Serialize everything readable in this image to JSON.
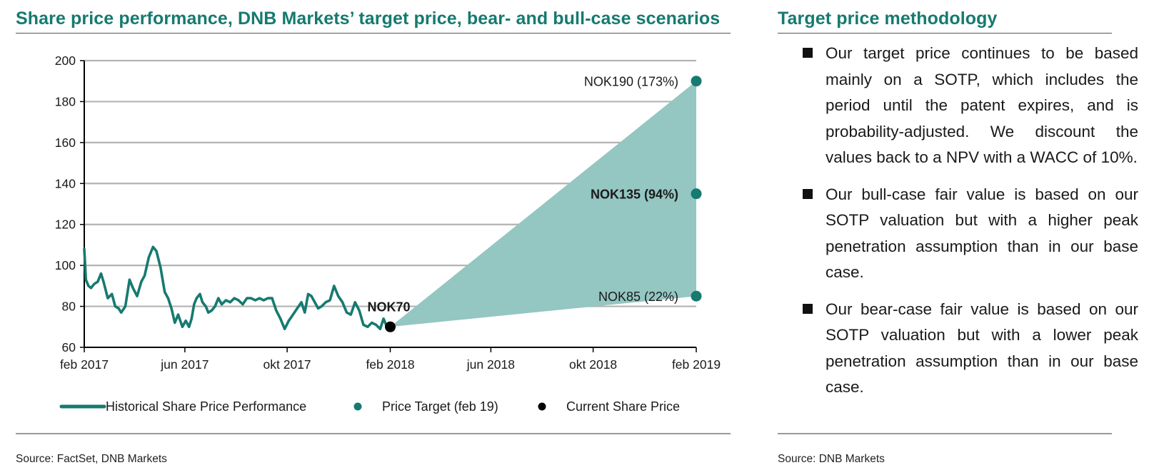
{
  "left_panel": {
    "title": "Share price performance, DNB Markets’ target price, bear- and bull-case scenarios",
    "source": "Source: FactSet, DNB Markets"
  },
  "right_panel": {
    "title": "Target price methodology",
    "bullets": [
      "Our target price continues to be based mainly on a SOTP, which includes the period until the patent expires, and is probability-adjusted. We discount the values back to a NPV with a WACC of 10%.",
      "Our bull-case fair value is based on our SOTP valuation but with a higher peak penetration assumption than in our base case.",
      "Our bear-case fair value is based on our SOTP valuation but with a lower peak penetration assumption than in our base case."
    ],
    "source": "Source: DNB Markets"
  },
  "chart_data": {
    "type": "line",
    "title": "Share price performance, DNB Markets’ target price, bear- and bull-case scenarios",
    "xlabel": "",
    "ylabel": "",
    "ylim": [
      60,
      200
    ],
    "yticks": [
      60,
      80,
      100,
      120,
      140,
      160,
      180,
      200
    ],
    "xlim": [
      "2017-02-01",
      "2019-02-01"
    ],
    "xticks": [
      {
        "date": "2017-02-01",
        "label": "feb 2017"
      },
      {
        "date": "2017-06-01",
        "label": "jun 2017"
      },
      {
        "date": "2017-10-01",
        "label": "okt 2017"
      },
      {
        "date": "2018-02-01",
        "label": "feb 2018"
      },
      {
        "date": "2018-06-01",
        "label": "jun 2018"
      },
      {
        "date": "2018-10-01",
        "label": "okt 2018"
      },
      {
        "date": "2019-02-01",
        "label": "feb 2019"
      }
    ],
    "grid": true,
    "legend_position": "bottom",
    "colors": {
      "history": "#167a70",
      "targets": "#167a70",
      "current": "#000000",
      "scenario_fill": "#94c6c2"
    },
    "series": [
      {
        "name": "Historical Share Price Performance",
        "x": [
          "2017-02-01",
          "2017-02-03",
          "2017-02-06",
          "2017-02-09",
          "2017-02-13",
          "2017-02-17",
          "2017-02-21",
          "2017-02-24",
          "2017-03-01",
          "2017-03-06",
          "2017-03-10",
          "2017-03-14",
          "2017-03-17",
          "2017-03-22",
          "2017-03-27",
          "2017-03-31",
          "2017-04-05",
          "2017-04-10",
          "2017-04-14",
          "2017-04-19",
          "2017-04-24",
          "2017-04-28",
          "2017-05-03",
          "2017-05-08",
          "2017-05-12",
          "2017-05-16",
          "2017-05-20",
          "2017-05-24",
          "2017-05-29",
          "2017-06-02",
          "2017-06-06",
          "2017-06-09",
          "2017-06-12",
          "2017-06-15",
          "2017-06-19",
          "2017-06-22",
          "2017-06-26",
          "2017-06-29",
          "2017-07-03",
          "2017-07-07",
          "2017-07-11",
          "2017-07-15",
          "2017-07-20",
          "2017-07-25",
          "2017-07-30",
          "2017-08-04",
          "2017-08-09",
          "2017-08-14",
          "2017-08-19",
          "2017-08-24",
          "2017-08-29",
          "2017-09-03",
          "2017-09-08",
          "2017-09-13",
          "2017-09-18",
          "2017-09-23",
          "2017-09-28",
          "2017-10-03",
          "2017-10-08",
          "2017-10-13",
          "2017-10-18",
          "2017-10-22",
          "2017-10-26",
          "2017-10-30",
          "2017-11-03",
          "2017-11-07",
          "2017-11-11",
          "2017-11-16",
          "2017-11-21",
          "2017-11-26",
          "2017-12-01",
          "2017-12-06",
          "2017-12-11",
          "2017-12-16",
          "2017-12-21",
          "2017-12-26",
          "2017-12-31",
          "2018-01-05",
          "2018-01-10",
          "2018-01-15",
          "2018-01-20",
          "2018-01-24",
          "2018-01-28",
          "2018-02-01"
        ],
        "values": [
          108,
          93,
          90,
          89,
          91,
          92,
          96,
          92,
          84,
          86,
          80,
          79,
          77,
          80,
          93,
          89,
          85,
          92,
          95,
          104,
          109,
          107,
          99,
          87,
          84,
          79,
          72,
          76,
          70,
          73,
          70,
          74,
          81,
          84,
          86,
          82,
          80,
          77,
          78,
          80,
          84,
          81,
          83,
          82,
          84,
          83,
          81,
          84,
          84,
          83,
          84,
          83,
          84,
          84,
          78,
          74,
          69,
          73,
          76,
          79,
          82,
          77,
          86,
          85,
          82,
          79,
          80,
          82,
          83,
          90,
          85,
          82,
          77,
          76,
          82,
          78,
          71,
          70,
          72,
          71,
          69,
          74,
          70,
          70
        ]
      },
      {
        "name": "Price Target (feb 19)",
        "points": [
          {
            "x": "2019-02-01",
            "y": 190,
            "label": "NOK190 (173%)",
            "bold": false
          },
          {
            "x": "2019-02-01",
            "y": 135,
            "label": "NOK135 (94%)",
            "bold": true
          },
          {
            "x": "2019-02-01",
            "y": 85,
            "label": "NOK85 (22%)",
            "bold": false
          }
        ]
      },
      {
        "name": "Current Share Price",
        "points": [
          {
            "x": "2018-02-01",
            "y": 70,
            "label": "NOK70"
          }
        ]
      }
    ],
    "scenario_band": {
      "from": {
        "x": "2018-02-01",
        "y": 70
      },
      "upper": {
        "x": "2019-02-01",
        "y": 190
      },
      "lower": {
        "x": "2019-02-01",
        "y": 85
      }
    }
  }
}
